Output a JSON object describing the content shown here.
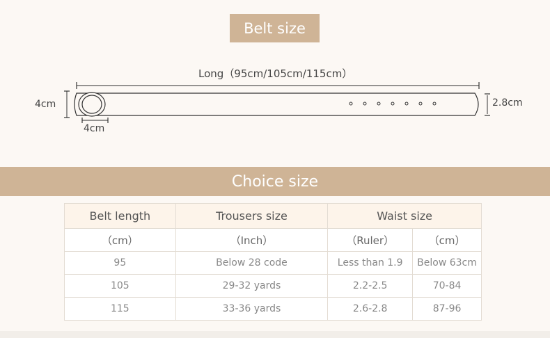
{
  "belt_size": {
    "title": "Belt size",
    "long_label": "Long（95cm/105cm/115cm）",
    "buckle_height": "4cm",
    "buckle_width": "4cm",
    "strap_width": "2.8cm"
  },
  "choice_size": {
    "title": "Choice size",
    "headers": [
      "Belt length",
      "Trousers size",
      "Waist size"
    ],
    "units": [
      "（cm）",
      "（Inch）",
      "（Ruler）",
      "（cm）"
    ],
    "rows": [
      [
        "95",
        "Below 28 code",
        "Less than 1.9",
        "Below 63cm"
      ],
      [
        "105",
        "29-32 yards",
        "2.2-2.5",
        "70-84"
      ],
      [
        "115",
        "33-36 yards",
        "2.6-2.8",
        "87-96"
      ]
    ]
  }
}
